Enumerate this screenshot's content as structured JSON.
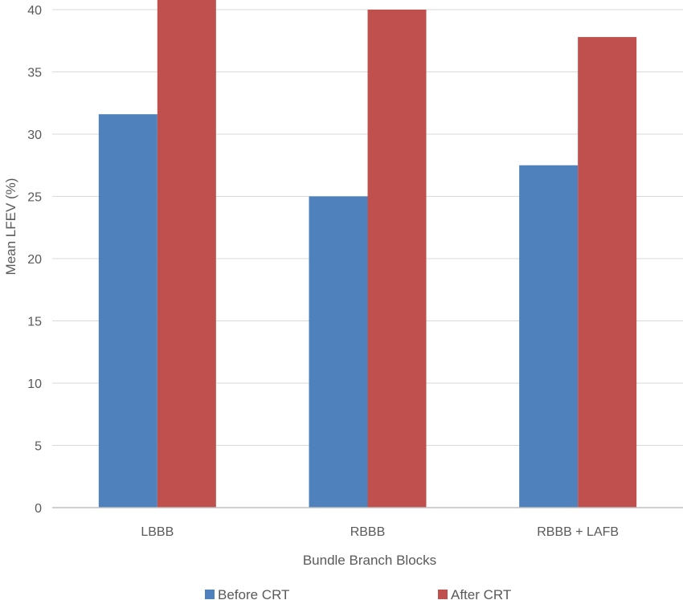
{
  "chart_data": {
    "type": "bar",
    "categories": [
      "LBBB",
      "RBBB",
      "RBBB + LAFB"
    ],
    "series": [
      {
        "name": "Before CRT",
        "values": [
          31.6,
          25.0,
          27.5
        ],
        "color": "#4F81BD"
      },
      {
        "name": "After CRT",
        "values": [
          40.8,
          40.0,
          37.8
        ],
        "color": "#C0504D"
      }
    ],
    "title": "",
    "xlabel": "Bundle Branch Blocks",
    "ylabel": "Mean LFEV (%)",
    "ylim": [
      0,
      40
    ],
    "yticks": [
      0,
      5,
      10,
      15,
      20,
      25,
      30,
      35,
      40
    ],
    "grid": true,
    "legend_position": "bottom",
    "gridline_color": "#D9D9D9",
    "axis_color": "#BFBFBF"
  }
}
